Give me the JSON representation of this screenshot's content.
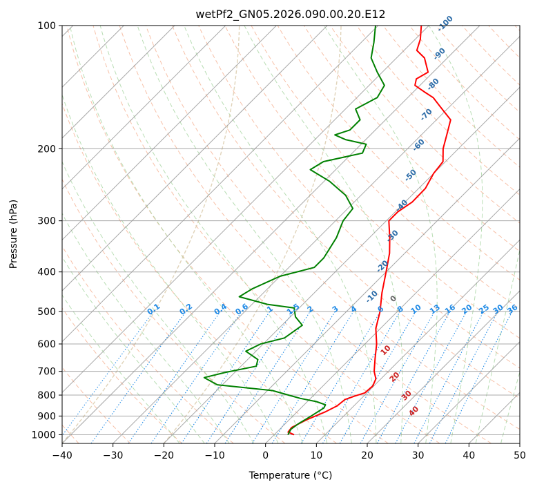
{
  "chart_data": {
    "type": "line",
    "title": "wetPf2_GN05.2026.090.00.20.E12",
    "xlabel": "Temperature (°C)",
    "ylabel": "Pressure (hPa)",
    "xlim": [
      -40,
      50
    ],
    "ylim": [
      1050,
      100
    ],
    "y_scale": "log",
    "grid": true,
    "x_ticks": [
      -40,
      -30,
      -20,
      -10,
      0,
      10,
      20,
      30,
      40,
      50
    ],
    "y_ticks": [
      100,
      200,
      300,
      400,
      500,
      600,
      700,
      800,
      900,
      1000
    ],
    "series": [
      {
        "role": "temperature",
        "color": "#ff0000",
        "points": [
          {
            "p": 1000,
            "t": 3.9
          },
          {
            "p": 985,
            "t": 2.2
          },
          {
            "p": 960,
            "t": 2.0
          },
          {
            "p": 920,
            "t": 3.4
          },
          {
            "p": 880,
            "t": 5.5
          },
          {
            "p": 850,
            "t": 6.7
          },
          {
            "p": 820,
            "t": 7.0
          },
          {
            "p": 805,
            "t": 8.2
          },
          {
            "p": 790,
            "t": 9.6
          },
          {
            "p": 760,
            "t": 9.8
          },
          {
            "p": 730,
            "t": 9.0
          },
          {
            "p": 700,
            "t": 7.2
          },
          {
            "p": 650,
            "t": 4.8
          },
          {
            "p": 600,
            "t": 2.3
          },
          {
            "p": 550,
            "t": -0.9
          },
          {
            "p": 500,
            "t": -3.4
          },
          {
            "p": 450,
            "t": -6.7
          },
          {
            "p": 400,
            "t": -10.0
          },
          {
            "p": 360,
            "t": -13.0
          },
          {
            "p": 330,
            "t": -16.0
          },
          {
            "p": 300,
            "t": -19.5
          },
          {
            "p": 285,
            "t": -19.5
          },
          {
            "p": 270,
            "t": -18.6
          },
          {
            "p": 250,
            "t": -18.7
          },
          {
            "p": 230,
            "t": -20.0
          },
          {
            "p": 215,
            "t": -20.5
          },
          {
            "p": 200,
            "t": -23.0
          },
          {
            "p": 185,
            "t": -25.0
          },
          {
            "p": 170,
            "t": -27.2
          },
          {
            "p": 160,
            "t": -31.0
          },
          {
            "p": 150,
            "t": -35.0
          },
          {
            "p": 145,
            "t": -38.0
          },
          {
            "p": 140,
            "t": -41.0
          },
          {
            "p": 135,
            "t": -42.0
          },
          {
            "p": 130,
            "t": -41.0
          },
          {
            "p": 120,
            "t": -44.5
          },
          {
            "p": 115,
            "t": -47.5
          },
          {
            "p": 108,
            "t": -49.0
          },
          {
            "p": 100,
            "t": -51.5
          }
        ]
      },
      {
        "role": "dewpoint",
        "color": "#008000",
        "points": [
          {
            "p": 1000,
            "t": 2.7
          },
          {
            "p": 970,
            "t": 2.2
          },
          {
            "p": 940,
            "t": 2.6
          },
          {
            "p": 900,
            "t": 3.6
          },
          {
            "p": 860,
            "t": 4.5
          },
          {
            "p": 845,
            "t": 4.2
          },
          {
            "p": 830,
            "t": 1.8
          },
          {
            "p": 815,
            "t": -2.0
          },
          {
            "p": 800,
            "t": -5.0
          },
          {
            "p": 780,
            "t": -9.0
          },
          {
            "p": 755,
            "t": -21.0
          },
          {
            "p": 725,
            "t": -25.0
          },
          {
            "p": 705,
            "t": -22.0
          },
          {
            "p": 680,
            "t": -17.0
          },
          {
            "p": 655,
            "t": -18.0
          },
          {
            "p": 625,
            "t": -22.0
          },
          {
            "p": 600,
            "t": -20.5
          },
          {
            "p": 580,
            "t": -17.0
          },
          {
            "p": 540,
            "t": -16.0
          },
          {
            "p": 515,
            "t": -19.0
          },
          {
            "p": 490,
            "t": -21.0
          },
          {
            "p": 480,
            "t": -27.0
          },
          {
            "p": 460,
            "t": -34.0
          },
          {
            "p": 440,
            "t": -33.0
          },
          {
            "p": 410,
            "t": -30.0
          },
          {
            "p": 390,
            "t": -25.0
          },
          {
            "p": 370,
            "t": -25.0
          },
          {
            "p": 330,
            "t": -26.5
          },
          {
            "p": 300,
            "t": -28.5
          },
          {
            "p": 280,
            "t": -29.0
          },
          {
            "p": 260,
            "t": -33.0
          },
          {
            "p": 240,
            "t": -39.0
          },
          {
            "p": 225,
            "t": -45.0
          },
          {
            "p": 215,
            "t": -44.0
          },
          {
            "p": 205,
            "t": -38.0
          },
          {
            "p": 195,
            "t": -39.0
          },
          {
            "p": 190,
            "t": -44.0
          },
          {
            "p": 185,
            "t": -47.0
          },
          {
            "p": 180,
            "t": -45.0
          },
          {
            "p": 170,
            "t": -45.0
          },
          {
            "p": 160,
            "t": -48.0
          },
          {
            "p": 150,
            "t": -46.0
          },
          {
            "p": 140,
            "t": -47.0
          },
          {
            "p": 130,
            "t": -51.0
          },
          {
            "p": 120,
            "t": -55.0
          },
          {
            "p": 110,
            "t": -57.5
          },
          {
            "p": 100,
            "t": -60.5
          }
        ]
      }
    ],
    "dry_adiabat_labels": [
      "-100",
      "-90",
      "-80",
      "-70",
      "-60",
      "-50",
      "-40",
      "-30",
      "-20",
      "-10"
    ],
    "moist_adiabat_labels": [
      "0",
      "10",
      "20",
      "30",
      "40"
    ],
    "mixing_ratio_labels": [
      "0.1",
      "0.2",
      "0.4",
      "0.6",
      "1",
      "1.5",
      "2",
      "3",
      "4",
      "6",
      "8",
      "10",
      "13",
      "16",
      "20",
      "25",
      "30",
      "36"
    ],
    "colors": {
      "temperature": "#ff0000",
      "dewpoint": "#008000",
      "dry_adiabat": "#f4a582",
      "moist_adiabat": "#a6d4a0",
      "mixing_ratio": "#1f8ae6",
      "isotherm": "#999999",
      "tan_curve": "#d8c8a8",
      "dry_label": "#2c6ca8",
      "moist_label_cold": "#666666",
      "moist_label_warm": "#cc2222",
      "mixing_label": "#1f8ae6"
    }
  }
}
